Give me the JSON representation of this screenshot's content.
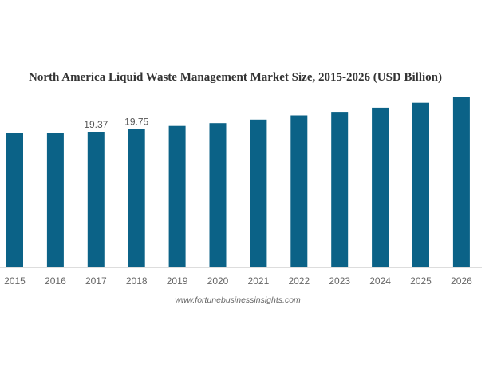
{
  "chart_data": {
    "type": "bar",
    "title": "North America Liquid Waste Management Market Size, 2015-2026 (USD Billion)",
    "xlabel": "",
    "ylabel": "",
    "categories": [
      "2015",
      "2016",
      "2017",
      "2018",
      "2019",
      "2020",
      "2021",
      "2022",
      "2023",
      "2024",
      "2025",
      "2026"
    ],
    "values": [
      19.2,
      19.2,
      19.37,
      19.75,
      20.2,
      20.6,
      21.1,
      21.7,
      22.2,
      22.8,
      23.5,
      24.3
    ],
    "data_labels": {
      "2017": "19.37",
      "2018": "19.75"
    },
    "ylim": [
      0,
      27
    ],
    "grid": false,
    "legend": "none",
    "bar_color": "#0b6287",
    "source": "www.fortunebusinessinsights.com"
  }
}
